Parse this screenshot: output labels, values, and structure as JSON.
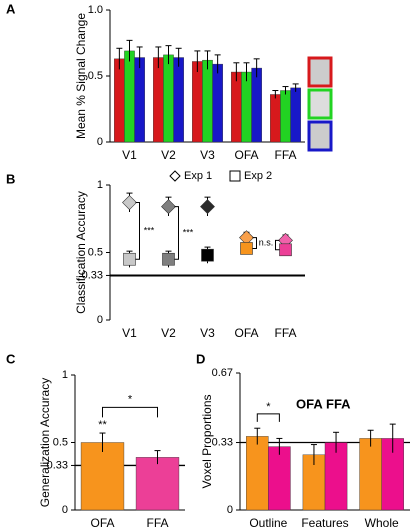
{
  "chart_data": [
    {
      "type": "bar",
      "label": "A",
      "ylabel": "Mean % Signal Change",
      "categories": [
        "V1",
        "V2",
        "V3",
        "OFA",
        "FFA"
      ],
      "series": [
        {
          "color": "#d7191c",
          "values": [
            0.63,
            0.64,
            0.61,
            0.53,
            0.36
          ],
          "errors": [
            0.08,
            0.08,
            0.08,
            0.07,
            0.03
          ]
        },
        {
          "color": "#22d322",
          "values": [
            0.69,
            0.66,
            0.62,
            0.53,
            0.39
          ],
          "errors": [
            0.08,
            0.07,
            0.07,
            0.07,
            0.03
          ]
        },
        {
          "color": "#1818c8",
          "values": [
            0.64,
            0.64,
            0.59,
            0.56,
            0.41
          ],
          "errors": [
            0.08,
            0.07,
            0.07,
            0.07,
            0.03
          ]
        }
      ],
      "ylim": [
        0,
        1
      ],
      "yticks": [
        0,
        0.5,
        {
          "value": 1,
          "label": "1.0"
        }
      ]
    },
    {
      "type": "scatter",
      "label": "B",
      "ylabel": "Classification Accuracy",
      "categories": [
        "V1",
        "V2",
        "V3",
        "OFA",
        "FFA"
      ],
      "category_colors": [
        "#000000",
        "#000000",
        "#000000",
        "#f7941d",
        "#ec3f97"
      ],
      "series": [
        {
          "name": "Exp 1",
          "marker": "diamond",
          "colors": [
            "#c8c8c8",
            "#7f7f7f",
            "#2a2a2a",
            "#f9a04a",
            "#f062aa"
          ],
          "values": [
            0.87,
            0.84,
            0.84,
            0.61,
            0.59
          ],
          "errors": [
            0.07,
            0.07,
            0.07,
            0.04,
            0.04
          ]
        },
        {
          "name": "Exp 2",
          "marker": "square",
          "colors": [
            "#c8c8c8",
            "#7f7f7f",
            "#000000",
            "#f7941d",
            "#ec3f97"
          ],
          "values": [
            0.45,
            0.45,
            0.48,
            0.53,
            0.52
          ],
          "errors": [
            0.06,
            0.06,
            0.06,
            0.04,
            0.04
          ]
        }
      ],
      "ylim": [
        0,
        1
      ],
      "yticks": [
        0,
        0.33,
        0.5,
        1
      ],
      "reference_line": 0.33,
      "annotations": [
        "***",
        "***",
        "n.s."
      ]
    },
    {
      "type": "bar",
      "label": "C",
      "ylabel": "Generalization Accuracy",
      "categories": [
        "OFA",
        "FFA"
      ],
      "category_colors": [
        "#f7941d",
        "#ec3f97"
      ],
      "colors": [
        "#f7941d",
        "#ec3f97"
      ],
      "values": [
        0.5,
        0.39
      ],
      "errors": [
        0.07,
        0.05
      ],
      "ylim": [
        0,
        1
      ],
      "yticks": [
        0,
        0.33,
        0.5,
        1
      ],
      "reference_line": 0.33,
      "annotations": [
        "**",
        "*"
      ]
    },
    {
      "type": "bar",
      "label": "D",
      "ylabel": "Voxel Proportions",
      "categories": [
        "Outline",
        "Features",
        "Whole"
      ],
      "series": [
        {
          "name": "OFA",
          "color": "#f7941d",
          "values": [
            0.36,
            0.27,
            0.35
          ],
          "errors": [
            0.04,
            0.05,
            0.04
          ]
        },
        {
          "name": "FFA",
          "color": "#ec0f8c",
          "values": [
            0.31,
            0.33,
            0.35
          ],
          "errors": [
            0.04,
            0.05,
            0.07
          ]
        }
      ],
      "ylim": [
        0,
        0.67
      ],
      "yticks": [
        0,
        0.33,
        0.67
      ],
      "reference_line": 0.33,
      "annotations": [
        "*"
      ]
    }
  ]
}
